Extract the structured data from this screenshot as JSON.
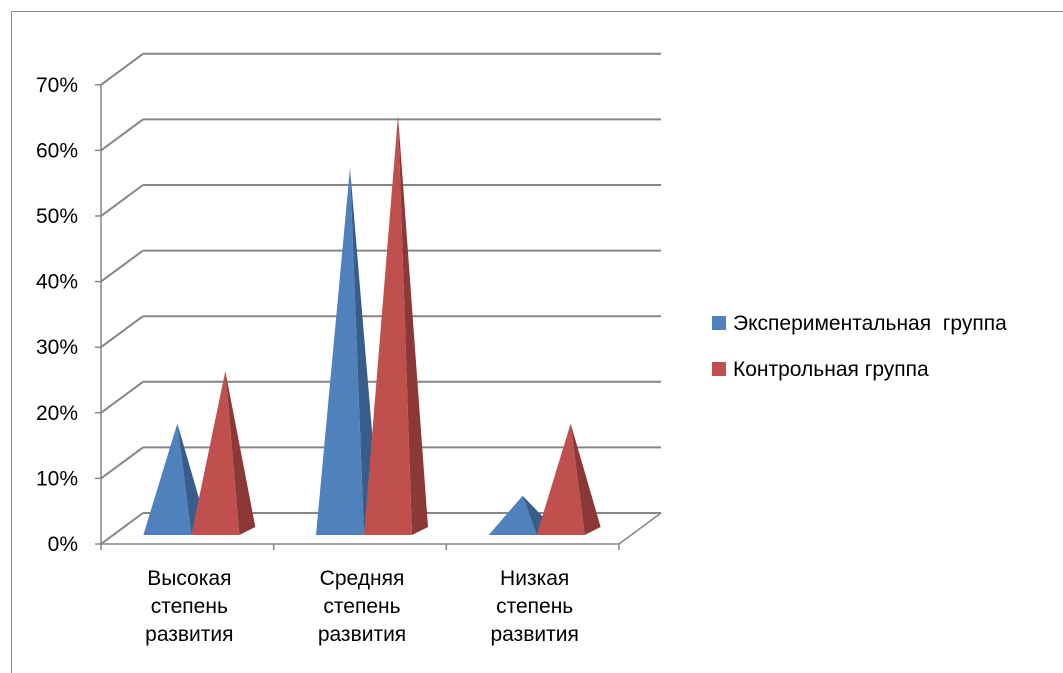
{
  "chart_data": {
    "type": "bar",
    "style": "3d-pyramid",
    "categories": [
      [
        "Высокая",
        "степень",
        "развития"
      ],
      [
        "Средняя",
        "степень",
        "развития"
      ],
      [
        "Низкая",
        "степень",
        "развития"
      ]
    ],
    "series": [
      {
        "name": "Экспериментальная  группа",
        "values": [
          16,
          55,
          5
        ],
        "color": "#4f81bd",
        "dark": "#385d8a"
      },
      {
        "name": "Контрольная группа",
        "values": [
          24,
          63,
          16
        ],
        "color": "#c0504d",
        "dark": "#8c3836"
      }
    ],
    "y_ticks": [
      "0%",
      "10%",
      "20%",
      "30%",
      "40%",
      "50%",
      "60%",
      "70%"
    ],
    "ylim": [
      0,
      70
    ],
    "grid": true,
    "legend_position": "right"
  }
}
